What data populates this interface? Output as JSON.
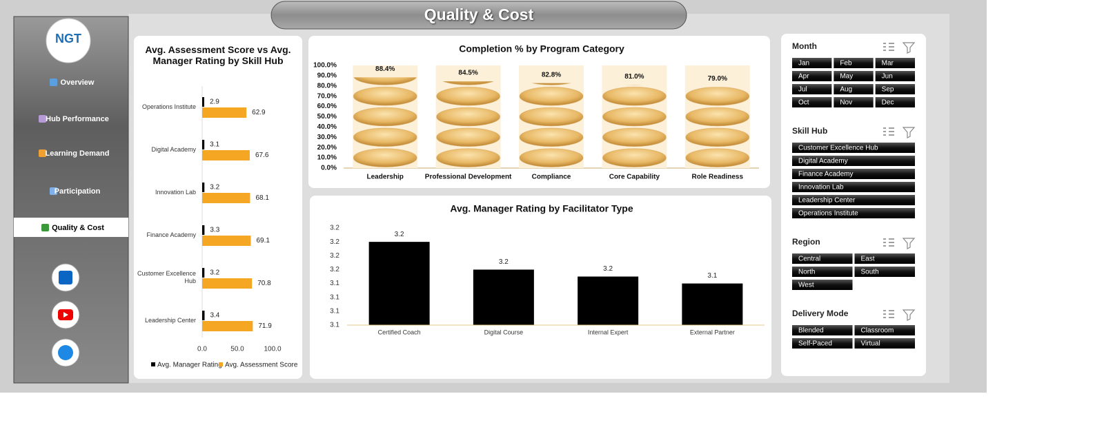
{
  "header": {
    "title": "Quality & Cost"
  },
  "logo": "NGT",
  "nav": [
    "Overview",
    "Hub Performance",
    "Learning Demand",
    "Participation",
    "Quality & Cost"
  ],
  "chart_data": [
    {
      "type": "hbar",
      "title": "Avg. Assessment Score vs Avg. Manager Rating by Skill Hub",
      "categories": [
        "Operations Institute",
        "Digital Academy",
        "Innovation Lab",
        "Finance Academy",
        "Customer Excellence Hub",
        "Leadership Center"
      ],
      "series": [
        {
          "name": "Avg. Manager Rating",
          "color": "#000000",
          "values": [
            2.9,
            3.1,
            3.2,
            3.3,
            3.2,
            3.4
          ]
        },
        {
          "name": "Avg. Assessment Score",
          "color": "#f5a623",
          "values": [
            62.9,
            67.6,
            68.1,
            69.1,
            70.8,
            71.9
          ]
        }
      ],
      "xlim": [
        0,
        100
      ],
      "xticks": [
        {
          "value": 0,
          "label": "0.0"
        },
        {
          "value": 50,
          "label": "50.0"
        },
        {
          "value": 100,
          "label": "100.0"
        }
      ],
      "legend": "bottom"
    },
    {
      "type": "pictograph",
      "title": "Completion % by Program Category",
      "categories": [
        "Leadership",
        "Professional Development",
        "Compliance",
        "Core Capability",
        "Role Readiness"
      ],
      "values": [
        88.4,
        84.5,
        82.8,
        81.0,
        79.0
      ],
      "value_labels": [
        "88.4%",
        "84.5%",
        "82.8%",
        "81.0%",
        "79.0%"
      ],
      "color": "#e8b865",
      "ylim": [
        0,
        100
      ],
      "yticks": [
        {
          "value": 0,
          "label": "0.0%"
        },
        {
          "value": 10,
          "label": "10.0%"
        },
        {
          "value": 20,
          "label": "20.0%"
        },
        {
          "value": 30,
          "label": "30.0%"
        },
        {
          "value": 40,
          "label": "40.0%"
        },
        {
          "value": 50,
          "label": "50.0%"
        },
        {
          "value": 60,
          "label": "60.0%"
        },
        {
          "value": 70,
          "label": "70.0%"
        },
        {
          "value": 80,
          "label": "80.0%"
        },
        {
          "value": 90,
          "label": "90.0%"
        },
        {
          "value": 100,
          "label": "100.0%"
        }
      ]
    },
    {
      "type": "bar",
      "title": "Avg. Manager Rating by Facilitator Type",
      "categories": [
        "Certified Coach",
        "Digital Course",
        "Internal Expert",
        "External Partner"
      ],
      "values": [
        3.2,
        3.16,
        3.15,
        3.14
      ],
      "value_labels": [
        "3.2",
        "3.2",
        "3.2",
        "3.1"
      ],
      "color": "#000000",
      "ylim": [
        3.08,
        3.22
      ],
      "yticks": [
        {
          "value": 3.08,
          "label": "3.1"
        },
        {
          "value": 3.1,
          "label": "3.1"
        },
        {
          "value": 3.12,
          "label": "3.1"
        },
        {
          "value": 3.14,
          "label": "3.1"
        },
        {
          "value": 3.16,
          "label": "3.2"
        },
        {
          "value": 3.18,
          "label": "3.2"
        },
        {
          "value": 3.2,
          "label": "3.2"
        },
        {
          "value": 3.22,
          "label": "3.2"
        }
      ]
    }
  ],
  "slicers": [
    {
      "title": "Month",
      "items": [
        "Jan",
        "Feb",
        "Mar",
        "Apr",
        "May",
        "Jun",
        "Jul",
        "Aug",
        "Sep",
        "Oct",
        "Nov",
        "Dec"
      ]
    },
    {
      "title": "Skill Hub",
      "items": [
        "Customer Excellence Hub",
        "Digital Academy",
        "Finance Academy",
        "Innovation Lab",
        "Leadership Center",
        "Operations Institute"
      ]
    },
    {
      "title": "Region",
      "items": [
        "Central",
        "East",
        "North",
        "South",
        "West"
      ]
    },
    {
      "title": "Delivery Mode",
      "items": [
        "Blended",
        "Classroom",
        "Self-Paced",
        "Virtual"
      ]
    }
  ]
}
